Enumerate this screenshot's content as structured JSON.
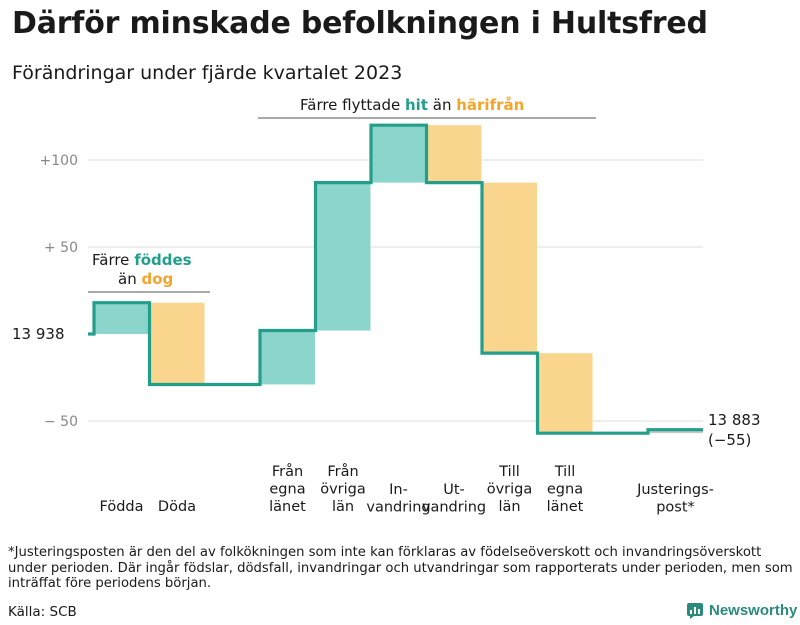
{
  "title": "Därför minskade befolkningen i Hultsfred",
  "subtitle": "Förändringar under fjärde kvartalet 2023",
  "footnote": "*Justeringsposten är den del av folkökningen som inte kan förklaras av födelseöverskott och invandringsöverskott under perioden. Där ingår födslar, dödsfall, invandringar och utvandringar som rapporterats under perioden, men som inträffat före periodens början.",
  "source": "Källa: SCB",
  "brand": "Newsworthy",
  "colors": {
    "increase": "#8cd5cc",
    "decrease": "#fad58e",
    "adjust": "#c8c8c8",
    "line": "#239e8a",
    "teal_text": "#239e8a",
    "orange_text": "#f3a42b",
    "grid": "#e4e4e4",
    "tick": "#888888"
  },
  "annotations": {
    "born": {
      "line1": "Färre",
      "teal": "föddes",
      "line2a": "än",
      "orange": "dog"
    },
    "moved": {
      "lead": "Färre flyttade",
      "teal": "hit",
      "mid": "än",
      "orange": "härifrån"
    }
  },
  "start_label": "13  938",
  "end_label": {
    "value": "13 883",
    "change": "(−55)"
  },
  "chart_data": {
    "type": "waterfall",
    "start": 13938,
    "end": 13883,
    "total_change": -55,
    "y_ticks": [
      {
        "value": 100,
        "label": "+100"
      },
      {
        "value": 50,
        "label": "+  50"
      },
      {
        "value": -50,
        "label": "−  50"
      }
    ],
    "ylim": [
      -60,
      120
    ],
    "steps": [
      {
        "label": [
          "Födda"
        ],
        "delta": 18
      },
      {
        "label": [
          "Döda"
        ],
        "delta": -47
      },
      {
        "label": [
          "Från",
          "egna",
          "länet"
        ],
        "delta": 31
      },
      {
        "label": [
          "Från",
          "övriga",
          "län"
        ],
        "delta": 85
      },
      {
        "label": [
          "In-",
          "vandring"
        ],
        "delta": 33
      },
      {
        "label": [
          "Ut-",
          "vandring"
        ],
        "delta": -33
      },
      {
        "label": [
          "Till",
          "övriga",
          "län"
        ],
        "delta": -98
      },
      {
        "label": [
          "Till",
          "egna",
          "länet"
        ],
        "delta": -46
      },
      {
        "label": [
          "Justerings-",
          "post*"
        ],
        "delta": 2
      }
    ]
  }
}
